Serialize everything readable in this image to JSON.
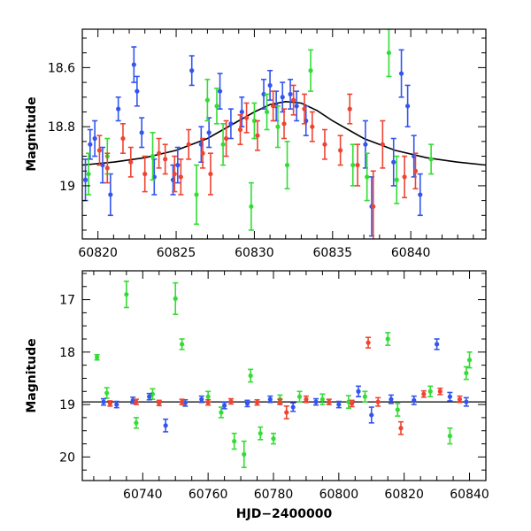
{
  "chart_data": [
    {
      "type": "scatter",
      "panel": "top",
      "title": "",
      "xlabel": "",
      "ylabel": "Magnitude",
      "xlim": [
        60819.0,
        60844.8
      ],
      "ylim": [
        19.18,
        18.47
      ],
      "y_inverted": true,
      "xticks": [
        "60820",
        "60825",
        "60830",
        "60835",
        "60840"
      ],
      "yticks": [
        "18.6",
        "18.8",
        "19"
      ],
      "grid": false,
      "legend": "none",
      "model_curve": {
        "name": "",
        "color": "#000000",
        "x": [
          60819.0,
          60821.0,
          60823.0,
          60825.0,
          60827.0,
          60829.0,
          60830.0,
          60831.0,
          60832.0,
          60833.0,
          60834.0,
          60835.0,
          60837.0,
          60839.0,
          60841.0,
          60843.0,
          60844.8
        ],
        "y": [
          18.93,
          18.92,
          18.905,
          18.88,
          18.84,
          18.78,
          18.75,
          18.725,
          18.715,
          18.72,
          18.745,
          18.78,
          18.84,
          18.88,
          18.905,
          18.92,
          18.93
        ]
      },
      "series": [
        {
          "color": "#3355ee",
          "points": [
            {
              "x": 60819.2,
              "y": 18.98,
              "err": 0.07
            },
            {
              "x": 60819.5,
              "y": 18.86,
              "err": 0.05
            },
            {
              "x": 60819.8,
              "y": 18.84,
              "err": 0.06
            },
            {
              "x": 60820.3,
              "y": 18.93,
              "err": 0.06
            },
            {
              "x": 60820.8,
              "y": 19.03,
              "err": 0.07
            },
            {
              "x": 60821.3,
              "y": 18.74,
              "err": 0.04
            },
            {
              "x": 60822.3,
              "y": 18.59,
              "err": 0.06
            },
            {
              "x": 60822.5,
              "y": 18.68,
              "err": 0.05
            },
            {
              "x": 60822.8,
              "y": 18.82,
              "err": 0.05
            },
            {
              "x": 60823.6,
              "y": 18.97,
              "err": 0.06
            },
            {
              "x": 60824.8,
              "y": 18.98,
              "err": 0.05
            },
            {
              "x": 60825.1,
              "y": 18.93,
              "err": 0.06
            },
            {
              "x": 60826.0,
              "y": 18.61,
              "err": 0.05
            },
            {
              "x": 60826.6,
              "y": 18.86,
              "err": 0.06
            },
            {
              "x": 60827.1,
              "y": 18.82,
              "err": 0.05
            },
            {
              "x": 60827.8,
              "y": 18.68,
              "err": 0.06
            },
            {
              "x": 60828.5,
              "y": 18.79,
              "err": 0.05
            },
            {
              "x": 60829.2,
              "y": 18.75,
              "err": 0.05
            },
            {
              "x": 60830.6,
              "y": 18.69,
              "err": 0.05
            },
            {
              "x": 60831.0,
              "y": 18.66,
              "err": 0.05
            },
            {
              "x": 60831.4,
              "y": 18.73,
              "err": 0.05
            },
            {
              "x": 60831.8,
              "y": 18.7,
              "err": 0.05
            },
            {
              "x": 60832.3,
              "y": 18.69,
              "err": 0.05
            },
            {
              "x": 60832.7,
              "y": 18.73,
              "err": 0.05
            },
            {
              "x": 60833.3,
              "y": 18.78,
              "err": 0.05
            },
            {
              "x": 60837.1,
              "y": 18.86,
              "err": 0.08
            },
            {
              "x": 60837.5,
              "y": 19.07,
              "err": 0.1
            },
            {
              "x": 60839.4,
              "y": 18.62,
              "err": 0.08
            },
            {
              "x": 60839.8,
              "y": 18.73,
              "err": 0.07
            },
            {
              "x": 60840.2,
              "y": 18.9,
              "err": 0.07
            },
            {
              "x": 60840.6,
              "y": 19.03,
              "err": 0.07
            },
            {
              "x": 60838.9,
              "y": 18.92,
              "err": 0.08
            }
          ]
        },
        {
          "color": "#33dd33",
          "points": [
            {
              "x": 60819.4,
              "y": 18.96,
              "err": 0.07
            },
            {
              "x": 60820.6,
              "y": 18.9,
              "err": 0.06
            },
            {
              "x": 60823.5,
              "y": 18.9,
              "err": 0.08
            },
            {
              "x": 60826.3,
              "y": 19.03,
              "err": 0.1
            },
            {
              "x": 60827.0,
              "y": 18.71,
              "err": 0.07
            },
            {
              "x": 60827.6,
              "y": 18.73,
              "err": 0.06
            },
            {
              "x": 60828.0,
              "y": 18.86,
              "err": 0.07
            },
            {
              "x": 60829.8,
              "y": 19.07,
              "err": 0.08
            },
            {
              "x": 60830.0,
              "y": 18.78,
              "err": 0.06
            },
            {
              "x": 60830.8,
              "y": 18.75,
              "err": 0.06
            },
            {
              "x": 60831.5,
              "y": 18.8,
              "err": 0.07
            },
            {
              "x": 60832.1,
              "y": 18.93,
              "err": 0.08
            },
            {
              "x": 60833.6,
              "y": 18.61,
              "err": 0.07
            },
            {
              "x": 60836.3,
              "y": 18.93,
              "err": 0.07
            },
            {
              "x": 60837.2,
              "y": 18.97,
              "err": 0.08
            },
            {
              "x": 60838.6,
              "y": 18.55,
              "err": 0.08
            },
            {
              "x": 60839.1,
              "y": 18.98,
              "err": 0.08
            },
            {
              "x": 60841.3,
              "y": 18.91,
              "err": 0.05
            }
          ]
        },
        {
          "color": "#ee4433",
          "points": [
            {
              "x": 60820.1,
              "y": 18.88,
              "err": 0.05
            },
            {
              "x": 60820.6,
              "y": 18.94,
              "err": 0.05
            },
            {
              "x": 60821.6,
              "y": 18.84,
              "err": 0.05
            },
            {
              "x": 60822.1,
              "y": 18.92,
              "err": 0.05
            },
            {
              "x": 60823.0,
              "y": 18.96,
              "err": 0.06
            },
            {
              "x": 60823.9,
              "y": 18.89,
              "err": 0.05
            },
            {
              "x": 60824.3,
              "y": 18.91,
              "err": 0.05
            },
            {
              "x": 60824.9,
              "y": 18.96,
              "err": 0.06
            },
            {
              "x": 60825.3,
              "y": 18.97,
              "err": 0.06
            },
            {
              "x": 60825.8,
              "y": 18.86,
              "err": 0.05
            },
            {
              "x": 60826.7,
              "y": 18.89,
              "err": 0.05
            },
            {
              "x": 60827.2,
              "y": 18.96,
              "err": 0.07
            },
            {
              "x": 60828.2,
              "y": 18.84,
              "err": 0.06
            },
            {
              "x": 60829.1,
              "y": 18.81,
              "err": 0.05
            },
            {
              "x": 60829.5,
              "y": 18.77,
              "err": 0.05
            },
            {
              "x": 60830.2,
              "y": 18.83,
              "err": 0.05
            },
            {
              "x": 60831.2,
              "y": 18.73,
              "err": 0.05
            },
            {
              "x": 60831.9,
              "y": 18.79,
              "err": 0.05
            },
            {
              "x": 60832.5,
              "y": 18.71,
              "err": 0.05
            },
            {
              "x": 60833.2,
              "y": 18.74,
              "err": 0.05
            },
            {
              "x": 60833.7,
              "y": 18.8,
              "err": 0.05
            },
            {
              "x": 60834.5,
              "y": 18.86,
              "err": 0.05
            },
            {
              "x": 60835.5,
              "y": 18.88,
              "err": 0.05
            },
            {
              "x": 60836.1,
              "y": 18.74,
              "err": 0.05
            },
            {
              "x": 60836.6,
              "y": 18.93,
              "err": 0.07
            },
            {
              "x": 60837.6,
              "y": 19.07,
              "err": 0.12
            },
            {
              "x": 60838.2,
              "y": 18.86,
              "err": 0.08
            },
            {
              "x": 60839.6,
              "y": 18.97,
              "err": 0.07
            },
            {
              "x": 60840.3,
              "y": 18.95,
              "err": 0.06
            }
          ]
        }
      ]
    },
    {
      "type": "scatter",
      "panel": "bottom",
      "title": "",
      "xlabel": "HJD−2400000",
      "ylabel": "Magnitude",
      "xlim": [
        60721.5,
        60845.0
      ],
      "ylim": [
        20.45,
        16.45
      ],
      "y_inverted": true,
      "xticks": [
        "60740",
        "60760",
        "60780",
        "60800",
        "60820",
        "60840"
      ],
      "yticks": [
        "17",
        "18",
        "19",
        "20"
      ],
      "grid": false,
      "legend": "none",
      "reference_line": {
        "y": 18.95,
        "color": "#000000"
      },
      "series": [
        {
          "color": "#33dd33",
          "points": [
            {
              "x": 60726,
              "y": 18.1,
              "err": 0.05
            },
            {
              "x": 60729,
              "y": 18.78,
              "err": 0.1
            },
            {
              "x": 60735,
              "y": 16.9,
              "err": 0.25
            },
            {
              "x": 60738,
              "y": 19.35,
              "err": 0.1
            },
            {
              "x": 60743,
              "y": 18.8,
              "err": 0.1
            },
            {
              "x": 60750,
              "y": 16.98,
              "err": 0.3
            },
            {
              "x": 60752,
              "y": 17.85,
              "err": 0.1
            },
            {
              "x": 60760,
              "y": 18.85,
              "err": 0.1
            },
            {
              "x": 60764,
              "y": 19.15,
              "err": 0.1
            },
            {
              "x": 60768,
              "y": 19.7,
              "err": 0.15
            },
            {
              "x": 60771,
              "y": 19.95,
              "err": 0.25
            },
            {
              "x": 60773,
              "y": 18.45,
              "err": 0.12
            },
            {
              "x": 60776,
              "y": 19.55,
              "err": 0.12
            },
            {
              "x": 60780,
              "y": 19.65,
              "err": 0.1
            },
            {
              "x": 60782,
              "y": 18.9,
              "err": 0.08
            },
            {
              "x": 60788,
              "y": 18.85,
              "err": 0.1
            },
            {
              "x": 60795,
              "y": 18.9,
              "err": 0.1
            },
            {
              "x": 60803,
              "y": 18.95,
              "err": 0.12
            },
            {
              "x": 60808,
              "y": 18.85,
              "err": 0.1
            },
            {
              "x": 60815,
              "y": 17.75,
              "err": 0.12
            },
            {
              "x": 60818,
              "y": 19.1,
              "err": 0.12
            },
            {
              "x": 60828,
              "y": 18.75,
              "err": 0.1
            },
            {
              "x": 60834,
              "y": 19.6,
              "err": 0.15
            },
            {
              "x": 60839,
              "y": 18.4,
              "err": 0.12
            },
            {
              "x": 60840,
              "y": 18.15,
              "err": 0.15
            }
          ]
        },
        {
          "color": "#3355ee",
          "points": [
            {
              "x": 60728,
              "y": 18.95,
              "err": 0.06
            },
            {
              "x": 60732,
              "y": 19.0,
              "err": 0.06
            },
            {
              "x": 60737,
              "y": 18.92,
              "err": 0.06
            },
            {
              "x": 60742,
              "y": 18.85,
              "err": 0.06
            },
            {
              "x": 60747,
              "y": 19.4,
              "err": 0.12
            },
            {
              "x": 60753,
              "y": 18.97,
              "err": 0.06
            },
            {
              "x": 60758,
              "y": 18.9,
              "err": 0.06
            },
            {
              "x": 60765,
              "y": 19.02,
              "err": 0.06
            },
            {
              "x": 60772,
              "y": 18.98,
              "err": 0.06
            },
            {
              "x": 60779,
              "y": 18.9,
              "err": 0.06
            },
            {
              "x": 60786,
              "y": 19.05,
              "err": 0.08
            },
            {
              "x": 60793,
              "y": 18.95,
              "err": 0.06
            },
            {
              "x": 60800,
              "y": 19.0,
              "err": 0.06
            },
            {
              "x": 60806,
              "y": 18.75,
              "err": 0.1
            },
            {
              "x": 60810,
              "y": 19.2,
              "err": 0.15
            },
            {
              "x": 60816,
              "y": 18.9,
              "err": 0.08
            },
            {
              "x": 60823,
              "y": 18.92,
              "err": 0.08
            },
            {
              "x": 60830,
              "y": 17.85,
              "err": 0.1
            },
            {
              "x": 60834,
              "y": 18.85,
              "err": 0.08
            },
            {
              "x": 60839,
              "y": 18.95,
              "err": 0.08
            }
          ]
        },
        {
          "color": "#ee4433",
          "points": [
            {
              "x": 60730,
              "y": 18.98,
              "err": 0.05
            },
            {
              "x": 60738,
              "y": 18.95,
              "err": 0.05
            },
            {
              "x": 60745,
              "y": 18.97,
              "err": 0.05
            },
            {
              "x": 60752,
              "y": 18.95,
              "err": 0.05
            },
            {
              "x": 60760,
              "y": 18.96,
              "err": 0.05
            },
            {
              "x": 60767,
              "y": 18.94,
              "err": 0.05
            },
            {
              "x": 60775,
              "y": 18.96,
              "err": 0.05
            },
            {
              "x": 60782,
              "y": 18.95,
              "err": 0.05
            },
            {
              "x": 60784,
              "y": 19.15,
              "err": 0.12
            },
            {
              "x": 60790,
              "y": 18.9,
              "err": 0.06
            },
            {
              "x": 60797,
              "y": 18.95,
              "err": 0.05
            },
            {
              "x": 60804,
              "y": 18.98,
              "err": 0.06
            },
            {
              "x": 60809,
              "y": 17.82,
              "err": 0.1
            },
            {
              "x": 60812,
              "y": 18.95,
              "err": 0.08
            },
            {
              "x": 60819,
              "y": 19.45,
              "err": 0.12
            },
            {
              "x": 60826,
              "y": 18.8,
              "err": 0.06
            },
            {
              "x": 60831,
              "y": 18.75,
              "err": 0.06
            },
            {
              "x": 60837,
              "y": 18.9,
              "err": 0.06
            }
          ]
        }
      ]
    }
  ]
}
